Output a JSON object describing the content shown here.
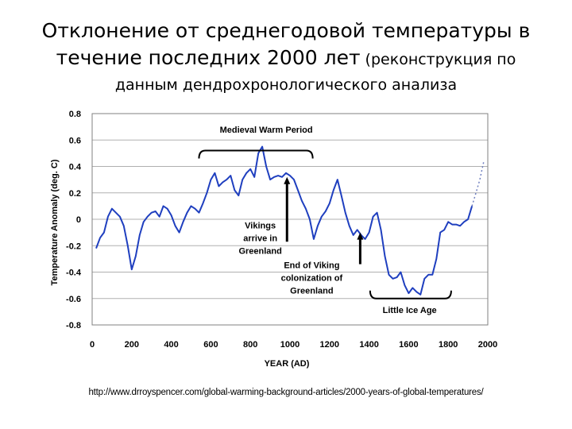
{
  "title": {
    "line1": "Отклонение от среднегодовой температуры в",
    "line2_main": "течение последних 2000 лет",
    "line2_small": " (реконструкция по",
    "line3": "данным дендрохронологического анализа"
  },
  "source_url": "http://www.drroyspencer.com/global-warming-background-articles/2000-years-of-global-temperatures/",
  "chart_data": {
    "type": "line",
    "xlabel": "YEAR (AD)",
    "ylabel": "Temperature Anomaly (deg. C)",
    "xlim": [
      0,
      2000
    ],
    "ylim": [
      -0.8,
      0.8
    ],
    "x_ticks": [
      0,
      200,
      400,
      600,
      800,
      1000,
      1200,
      1400,
      1600,
      1800,
      2000
    ],
    "y_ticks": [
      0.8,
      0.6,
      0.4,
      0.2,
      0,
      -0.2,
      -0.4,
      -0.6,
      -0.8
    ],
    "y_tick_labels": [
      "0.8",
      "0.6",
      "0.4",
      "0.2",
      "0",
      "-0.2",
      "-0.4",
      "-0.6",
      "-0.8"
    ],
    "grid": "horizontal",
    "line_color": "#1f3fbf",
    "series": [
      {
        "x": [
          20,
          40,
          60,
          80,
          100,
          120,
          140,
          160,
          180,
          200,
          220,
          240,
          260,
          280,
          300,
          320,
          340,
          360,
          380,
          400,
          420,
          440,
          460,
          480,
          500,
          520,
          540,
          560,
          580,
          600,
          620,
          640,
          660,
          680,
          700,
          720,
          740,
          760,
          780,
          800,
          820,
          840,
          860,
          880,
          900,
          920,
          940,
          960,
          980,
          1000,
          1020,
          1040,
          1060,
          1080,
          1100,
          1120,
          1140,
          1160,
          1180,
          1200,
          1220,
          1240,
          1260,
          1280,
          1300,
          1320,
          1340,
          1360,
          1380,
          1400,
          1420,
          1440,
          1460,
          1480,
          1500,
          1520,
          1540,
          1560,
          1580,
          1600,
          1620,
          1640,
          1660,
          1680,
          1700,
          1720,
          1740,
          1760,
          1780,
          1800,
          1820,
          1840,
          1860,
          1880,
          1900,
          1920
        ],
        "y": [
          -0.22,
          -0.14,
          -0.1,
          0.02,
          0.08,
          0.05,
          0.02,
          -0.05,
          -0.2,
          -0.38,
          -0.28,
          -0.12,
          -0.02,
          0.02,
          0.05,
          0.06,
          0.02,
          0.1,
          0.08,
          0.03,
          -0.05,
          -0.1,
          -0.02,
          0.05,
          0.1,
          0.08,
          0.05,
          0.12,
          0.2,
          0.3,
          0.35,
          0.25,
          0.28,
          0.3,
          0.33,
          0.22,
          0.18,
          0.3,
          0.35,
          0.38,
          0.32,
          0.5,
          0.55,
          0.4,
          0.3,
          0.32,
          0.33,
          0.32,
          0.35,
          0.33,
          0.3,
          0.22,
          0.14,
          0.08,
          0.0,
          -0.15,
          -0.05,
          0.02,
          0.06,
          0.12,
          0.22,
          0.3,
          0.18,
          0.05,
          -0.05,
          -0.12,
          -0.08,
          -0.12,
          -0.15,
          -0.1,
          0.02,
          0.05,
          -0.08,
          -0.28,
          -0.42,
          -0.45,
          -0.44,
          -0.4,
          -0.5,
          -0.56,
          -0.52,
          -0.55,
          -0.57,
          -0.45,
          -0.42,
          -0.42,
          -0.3,
          -0.1,
          -0.08,
          -0.02,
          -0.04,
          -0.04,
          -0.05,
          -0.02,
          0.0,
          0.1
        ]
      }
    ],
    "dotted_extension": {
      "x": [
        1920,
        1940,
        1960,
        1980
      ],
      "y": [
        0.1,
        0.2,
        0.3,
        0.44
      ]
    },
    "annotations": [
      {
        "text_lines": [
          "Medieval Warm Period"
        ],
        "label_x": 880,
        "label_y": 0.655,
        "bracket": [
          540,
          1115
        ],
        "bracket_y": 0.52,
        "bracket_dir": "down"
      },
      {
        "text_lines": [
          "Vikings",
          "arrive in",
          "Greenland"
        ],
        "label_x": 850,
        "label_y": -0.07,
        "arrow_x": 985,
        "arrow_from": -0.17,
        "arrow_to": 0.32
      },
      {
        "text_lines": [
          "End of Viking",
          "colonization of",
          "Greenland"
        ],
        "label_x": 1110,
        "label_y": -0.37,
        "arrow_x": 1355,
        "arrow_from": -0.34,
        "arrow_to": -0.1
      },
      {
        "text_lines": [
          "Little Ice Age"
        ],
        "label_x": 1605,
        "label_y": -0.71,
        "bracket": [
          1405,
          1815
        ],
        "bracket_y": -0.6,
        "bracket_dir": "up"
      }
    ]
  }
}
